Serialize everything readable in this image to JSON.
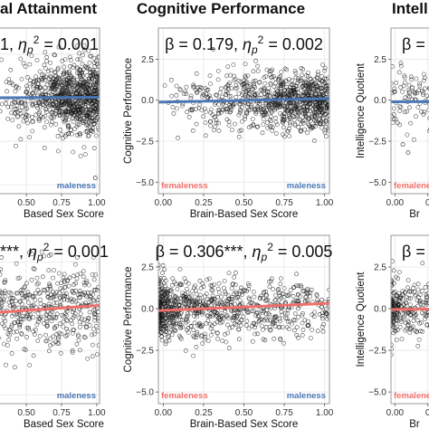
{
  "colors": {
    "male_line": "#4a78b5",
    "female_line": "#ef6f6a",
    "female_label": "#ef6f6a",
    "male_label": "#4a78b5",
    "point_stroke": "#1a1a1a",
    "panel_border": "#9a9a9a",
    "grid": "#e6e6e6"
  },
  "column_titles": [
    "al Attainment",
    "Cognitive Performance",
    "Intell"
  ],
  "corner_labels": {
    "female": "femaleness",
    "male": "maleness"
  },
  "chart_data": [
    {
      "type": "scatter",
      "row": 1,
      "col": 1,
      "title": "al Attainment",
      "annotation": {
        "pre": "1, ",
        "eta": "η",
        "sub": "p",
        "sup": "2",
        "post": " = 0.001"
      },
      "xlabel": "Based Sex Score",
      "ylabel": "",
      "xticks": [
        "0.50",
        "0.75",
        "1.00"
      ],
      "xtick_values": [
        0.5,
        0.75,
        1.0
      ],
      "yticks": [],
      "ytick_values": [],
      "xlim": [
        0.3,
        1.02
      ],
      "ylim": [
        -5.5,
        4.0
      ],
      "corner_label": "maleness",
      "fit": {
        "x": [
          0.3,
          1.02
        ],
        "y": [
          0.0,
          0.02
        ]
      },
      "line_color": "#4a78b5",
      "scatter": {
        "n": 900,
        "x_mode": "rising",
        "spread": 1.0,
        "outliers": [
          [
            0.99,
            -4.6
          ]
        ]
      }
    },
    {
      "type": "scatter",
      "row": 1,
      "col": 2,
      "title": "Cognitive Performance",
      "annotation": {
        "pre": "β = 0.179, ",
        "eta": "η",
        "sub": "p",
        "sup": "2",
        "post": " = 0.002"
      },
      "xlabel": "Brain-Based Sex Score",
      "ylabel": "Cognitive Performance",
      "xticks": [
        "0.00",
        "0.25",
        "0.50",
        "0.75",
        "1.00"
      ],
      "xtick_values": [
        0,
        0.25,
        0.5,
        0.75,
        1.0
      ],
      "yticks": [
        "−5.0",
        "−2.5",
        "0.0",
        "2.5"
      ],
      "ytick_values": [
        -5,
        -2.5,
        0,
        2.5
      ],
      "xlim": [
        -0.03,
        1.03
      ],
      "ylim": [
        -5.7,
        4.4
      ],
      "corner_label_left": "femaleness",
      "corner_label": "maleness",
      "fit": {
        "x": [
          -0.03,
          1.03
        ],
        "y": [
          -0.12,
          0.1
        ]
      },
      "line_color": "#4a78b5",
      "scatter": {
        "n": 900,
        "x_mode": "rising",
        "spread": 0.9,
        "outliers": []
      }
    },
    {
      "type": "scatter",
      "row": 1,
      "col": 3,
      "title": "Intell",
      "annotation": {
        "pre": "β =",
        "eta": "",
        "sub": "",
        "sup": "",
        "post": ""
      },
      "xlabel": "Br",
      "ylabel": "Intelligence Quotient",
      "xticks": [
        "0.00",
        "0"
      ],
      "xtick_values": [
        0,
        0.25
      ],
      "yticks": [
        "−5.0",
        "−2.5",
        "0.0",
        "2.5"
      ],
      "ytick_values": [
        -5,
        -2.5,
        0,
        2.5
      ],
      "xlim": [
        -0.03,
        0.3
      ],
      "ylim": [
        -5.7,
        4.4
      ],
      "corner_label_left": "femaleness",
      "corner_label": "",
      "fit": {
        "x": [
          -0.03,
          0.3
        ],
        "y": [
          -0.1,
          -0.08
        ]
      },
      "line_color": "#4a78b5",
      "scatter": {
        "n": 90,
        "x_mode": "uniform",
        "spread": 0.9,
        "outliers": [
          [
            0.06,
            -2.7
          ],
          [
            0.1,
            -3.2
          ]
        ]
      }
    },
    {
      "type": "scatter",
      "row": 2,
      "col": 1,
      "title": "",
      "annotation": {
        "pre": "***, ",
        "eta": "η",
        "sub": "p",
        "sup": "2",
        "post": " = 0.001"
      },
      "xlabel": "Based Sex Score",
      "ylabel": "",
      "xticks": [
        "0.50",
        "0.75",
        "1.00"
      ],
      "xtick_values": [
        0.5,
        0.75,
        1.0
      ],
      "yticks": [],
      "ytick_values": [],
      "xlim": [
        0.3,
        1.02
      ],
      "ylim": [
        -5.5,
        4.0
      ],
      "corner_label": "maleness",
      "fit": {
        "x": [
          0.3,
          1.02
        ],
        "y": [
          -0.35,
          0.05
        ]
      },
      "line_color": "#ef6f6a",
      "scatter": {
        "n": 420,
        "x_mode": "uniform",
        "spread": 1.15,
        "outliers": []
      }
    },
    {
      "type": "scatter",
      "row": 2,
      "col": 2,
      "title": "",
      "annotation": {
        "pre": "β = 0.306***, ",
        "eta": "η",
        "sub": "p",
        "sup": "2",
        "post": " = 0.005"
      },
      "xlabel": "Brain-Based Sex Score",
      "ylabel": "Cognitive Performance",
      "xticks": [
        "0.00",
        "0.25",
        "0.50",
        "0.75",
        "1.00"
      ],
      "xtick_values": [
        0,
        0.25,
        0.5,
        0.75,
        1.0
      ],
      "yticks": [
        "−5.0",
        "−2.5",
        "0.0",
        "2.5"
      ],
      "ytick_values": [
        -5,
        -2.5,
        0,
        2.5
      ],
      "xlim": [
        -0.03,
        1.03
      ],
      "ylim": [
        -5.7,
        4.4
      ],
      "corner_label_left": "femaleness",
      "corner_label": "maleness",
      "fit": {
        "x": [
          -0.03,
          1.03
        ],
        "y": [
          -0.12,
          0.32
        ]
      },
      "line_color": "#ef6f6a",
      "scatter": {
        "n": 900,
        "x_mode": "falling",
        "spread": 0.9,
        "outliers": []
      }
    },
    {
      "type": "scatter",
      "row": 2,
      "col": 3,
      "title": "",
      "annotation": {
        "pre": "β = −",
        "eta": "",
        "sub": "",
        "sup": "",
        "post": ""
      },
      "xlabel": "Br",
      "ylabel": "Intelligence Quotient",
      "xticks": [
        "0.00",
        "0"
      ],
      "xtick_values": [
        0,
        0.25
      ],
      "yticks": [
        "−5.0",
        "−2.5",
        "0.0",
        "2.5"
      ],
      "ytick_values": [
        -5,
        -2.5,
        0,
        2.5
      ],
      "xlim": [
        -0.03,
        0.3
      ],
      "ylim": [
        -5.7,
        4.4
      ],
      "corner_label_left": "femaleness",
      "corner_label": "",
      "fit": {
        "x": [
          -0.03,
          0.3
        ],
        "y": [
          -0.05,
          -0.02
        ]
      },
      "line_color": "#ef6f6a",
      "scatter": {
        "n": 260,
        "x_mode": "falling",
        "spread": 0.9,
        "outliers": []
      }
    }
  ]
}
